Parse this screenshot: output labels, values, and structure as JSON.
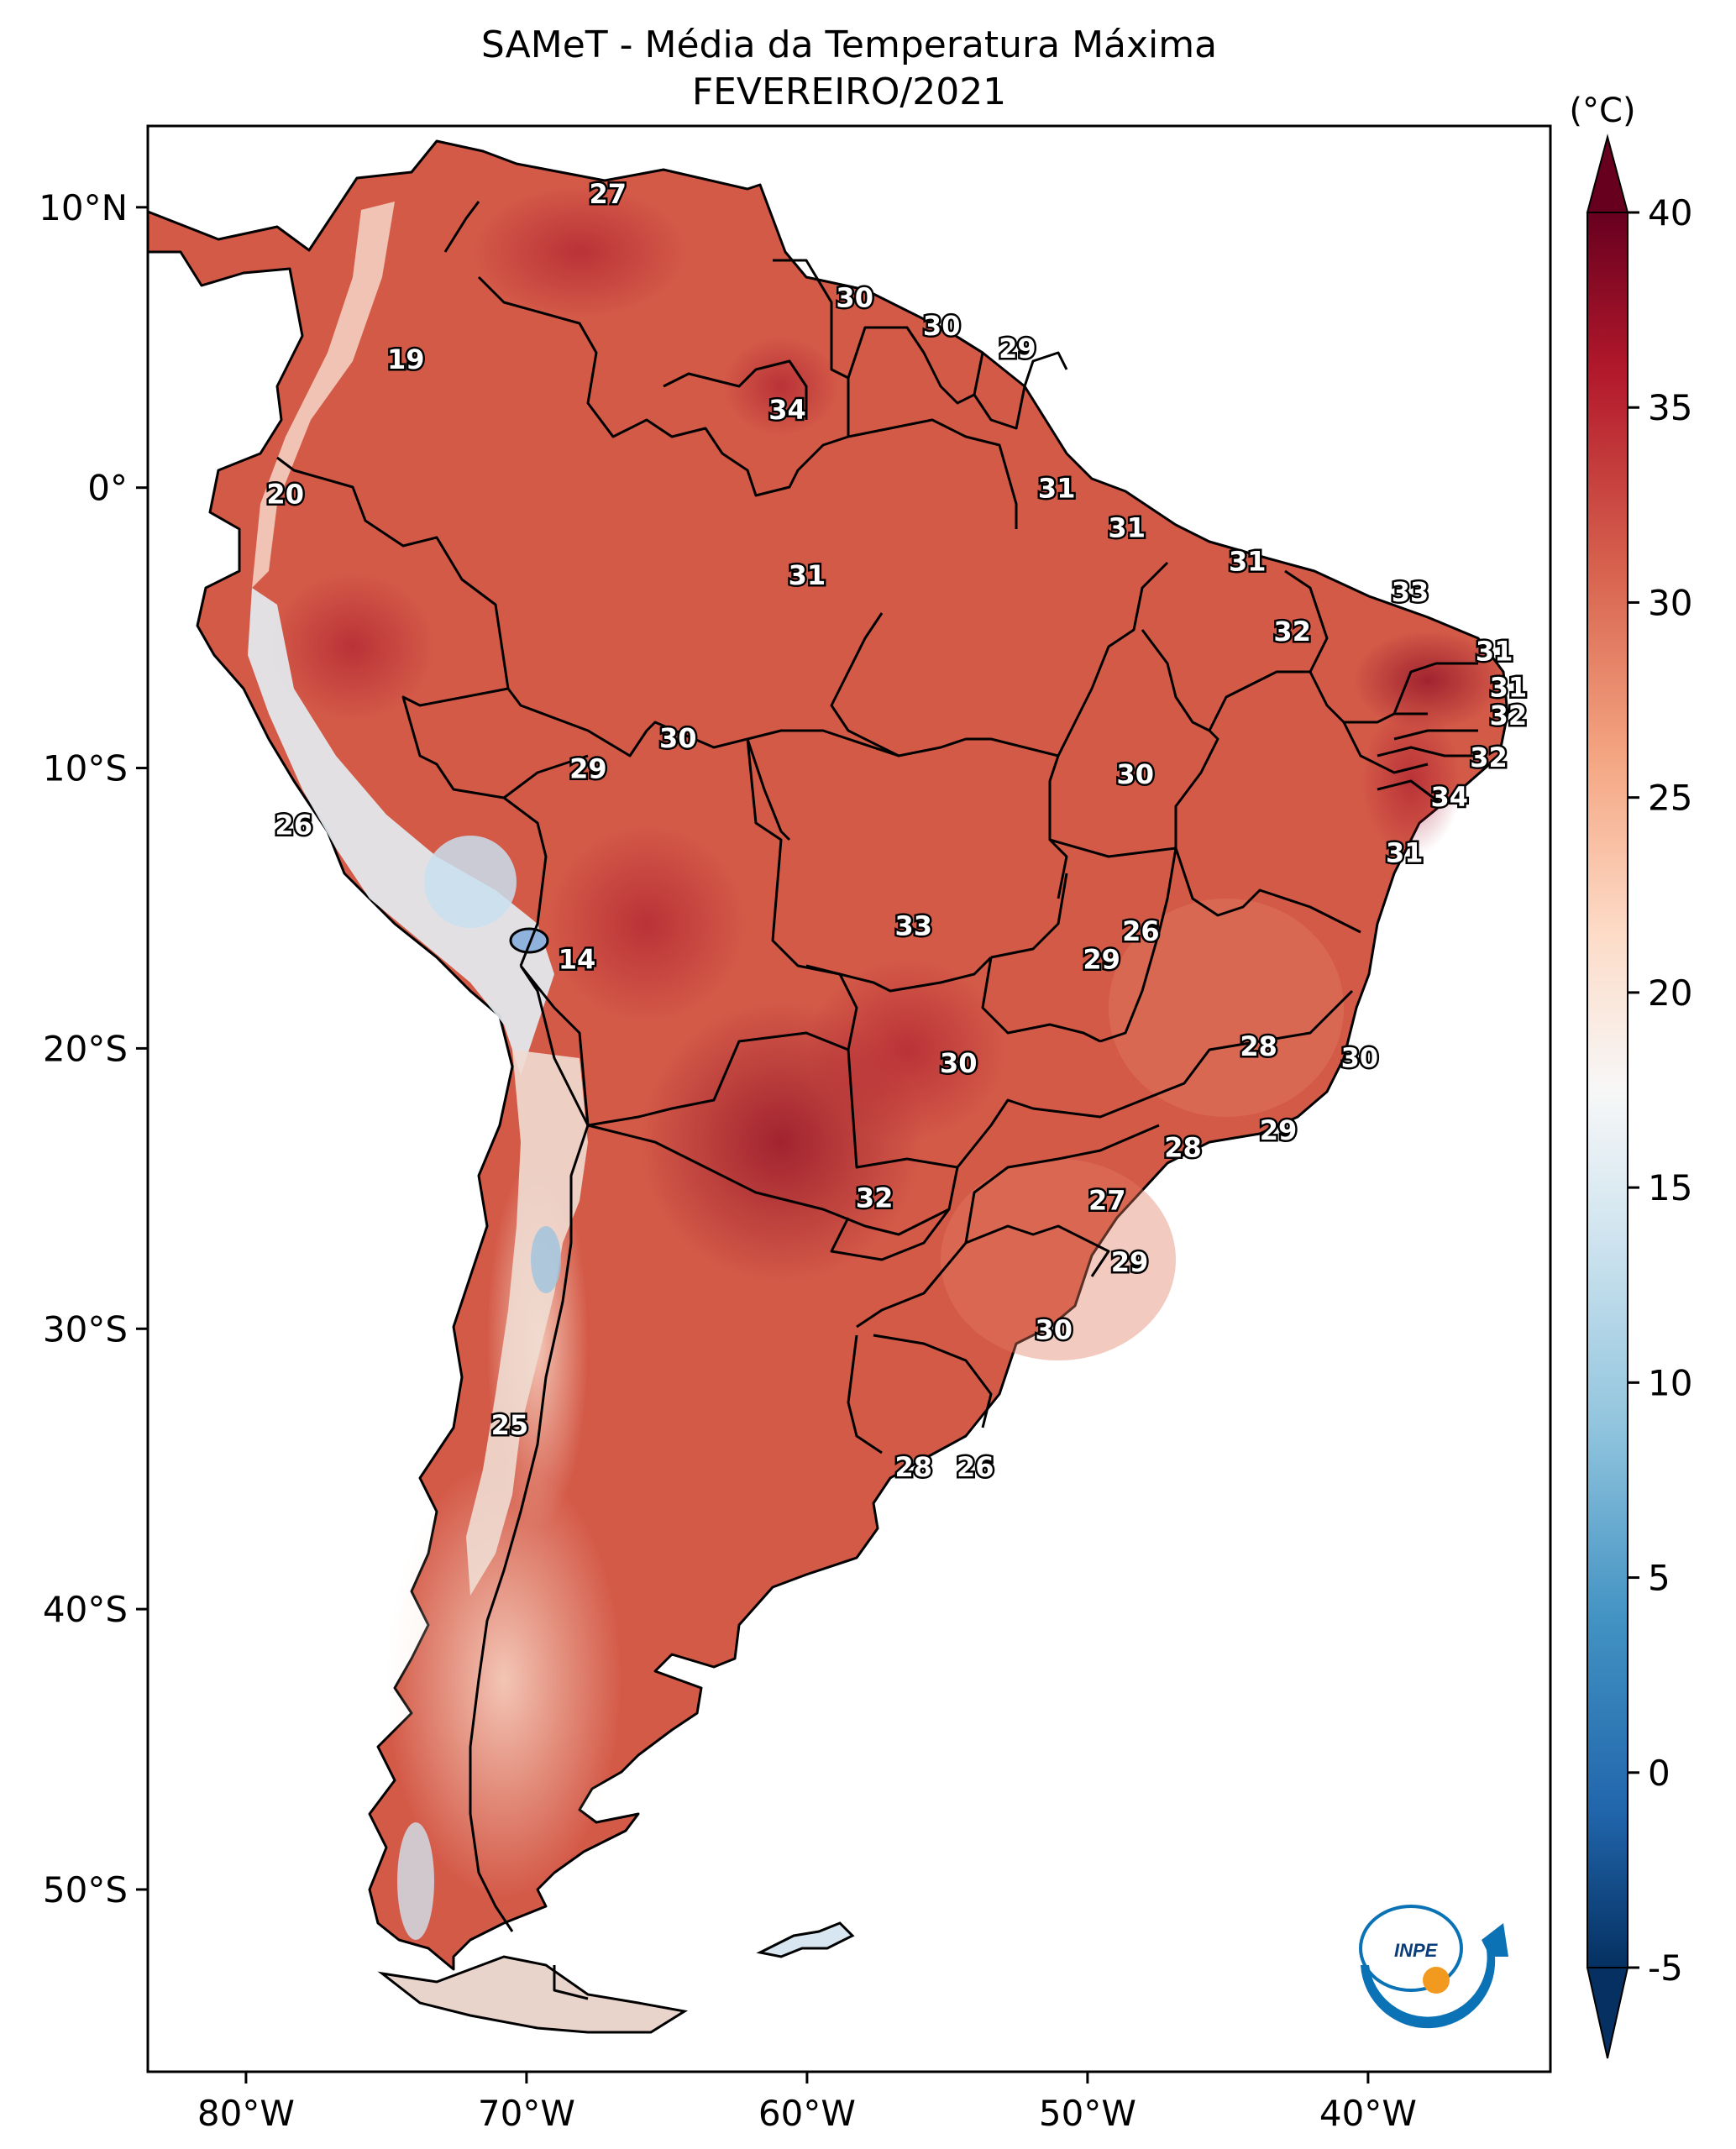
{
  "title": {
    "line1": "SAMeT - Média da Temperatura Máxima",
    "line2": "FEVEREIRO/2021"
  },
  "axes": {
    "lon_ticks": [
      {
        "lon": -80,
        "label": "80°W"
      },
      {
        "lon": -70,
        "label": "70°W"
      },
      {
        "lon": -60,
        "label": "60°W"
      },
      {
        "lon": -50,
        "label": "50°W"
      },
      {
        "lon": -40,
        "label": "40°W"
      }
    ],
    "lat_ticks": [
      {
        "lat": 10,
        "label": "10°N"
      },
      {
        "lat": 0,
        "label": "0°"
      },
      {
        "lat": -10,
        "label": "10°S"
      },
      {
        "lat": -20,
        "label": "20°S"
      },
      {
        "lat": -30,
        "label": "30°S"
      },
      {
        "lat": -40,
        "label": "40°S"
      },
      {
        "lat": -50,
        "label": "50°S"
      }
    ],
    "lon_range": [
      -83.5,
      -33.5
    ],
    "lat_range": [
      -56.5,
      12.9
    ]
  },
  "colorbar": {
    "unit_label": "(°C)",
    "min": -5,
    "max": 40,
    "ticks": [
      {
        "value": 40,
        "label": "40"
      },
      {
        "value": 35,
        "label": "35"
      },
      {
        "value": 30,
        "label": "30"
      },
      {
        "value": 25,
        "label": "25"
      },
      {
        "value": 20,
        "label": "20"
      },
      {
        "value": 15,
        "label": "15"
      },
      {
        "value": 10,
        "label": "10"
      },
      {
        "value": 5,
        "label": "5"
      },
      {
        "value": 0,
        "label": "0"
      },
      {
        "value": -5,
        "label": "-5"
      }
    ],
    "colors": [
      "#053061",
      "#2166ac",
      "#4393c3",
      "#92c5de",
      "#d1e5f0",
      "#f7f7f7",
      "#fddbc7",
      "#f4a582",
      "#d6604d",
      "#b2182b",
      "#67001f"
    ]
  },
  "labels": [
    {
      "text": "27",
      "lon": -67.1,
      "lat": 10.5
    },
    {
      "text": "19",
      "lon": -74.3,
      "lat": 4.6
    },
    {
      "text": "20",
      "lon": -78.6,
      "lat": -0.2
    },
    {
      "text": "30",
      "lon": -58.3,
      "lat": 6.8
    },
    {
      "text": "30",
      "lon": -55.2,
      "lat": 5.8
    },
    {
      "text": "29",
      "lon": -52.5,
      "lat": 5.0
    },
    {
      "text": "34",
      "lon": -60.7,
      "lat": 2.8
    },
    {
      "text": "31",
      "lon": -51.1,
      "lat": 0.0
    },
    {
      "text": "31",
      "lon": -48.6,
      "lat": -1.4
    },
    {
      "text": "31",
      "lon": -60.0,
      "lat": -3.1
    },
    {
      "text": "31",
      "lon": -44.3,
      "lat": -2.6
    },
    {
      "text": "33",
      "lon": -38.5,
      "lat": -3.7
    },
    {
      "text": "32",
      "lon": -42.7,
      "lat": -5.1
    },
    {
      "text": "31",
      "lon": -35.5,
      "lat": -5.8
    },
    {
      "text": "31",
      "lon": -35.0,
      "lat": -7.1
    },
    {
      "text": "32",
      "lon": -35.0,
      "lat": -8.1
    },
    {
      "text": "32",
      "lon": -35.7,
      "lat": -9.6
    },
    {
      "text": "34",
      "lon": -37.1,
      "lat": -11.0
    },
    {
      "text": "30",
      "lon": -64.6,
      "lat": -8.9
    },
    {
      "text": "29",
      "lon": -67.8,
      "lat": -10.0
    },
    {
      "text": "30",
      "lon": -48.3,
      "lat": -10.2
    },
    {
      "text": "26",
      "lon": -78.3,
      "lat": -12.0
    },
    {
      "text": "31",
      "lon": -38.7,
      "lat": -13.0
    },
    {
      "text": "33",
      "lon": -56.2,
      "lat": -15.6
    },
    {
      "text": "26",
      "lon": -48.1,
      "lat": -15.8
    },
    {
      "text": "29",
      "lon": -49.5,
      "lat": -16.8
    },
    {
      "text": "14",
      "lon": -68.2,
      "lat": -16.8
    },
    {
      "text": "28",
      "lon": -43.9,
      "lat": -19.9
    },
    {
      "text": "30",
      "lon": -40.3,
      "lat": -20.3
    },
    {
      "text": "30",
      "lon": -54.6,
      "lat": -20.5
    },
    {
      "text": "29",
      "lon": -43.2,
      "lat": -22.9
    },
    {
      "text": "28",
      "lon": -46.6,
      "lat": -23.5
    },
    {
      "text": "32",
      "lon": -57.6,
      "lat": -25.3
    },
    {
      "text": "27",
      "lon": -49.3,
      "lat": -25.4
    },
    {
      "text": "29",
      "lon": -48.5,
      "lat": -27.6
    },
    {
      "text": "30",
      "lon": -51.2,
      "lat": -30.0
    },
    {
      "text": "25",
      "lon": -70.6,
      "lat": -33.4
    },
    {
      "text": "28",
      "lon": -56.2,
      "lat": -34.9
    },
    {
      "text": "26",
      "lon": -54.0,
      "lat": -34.9
    }
  ]
}
